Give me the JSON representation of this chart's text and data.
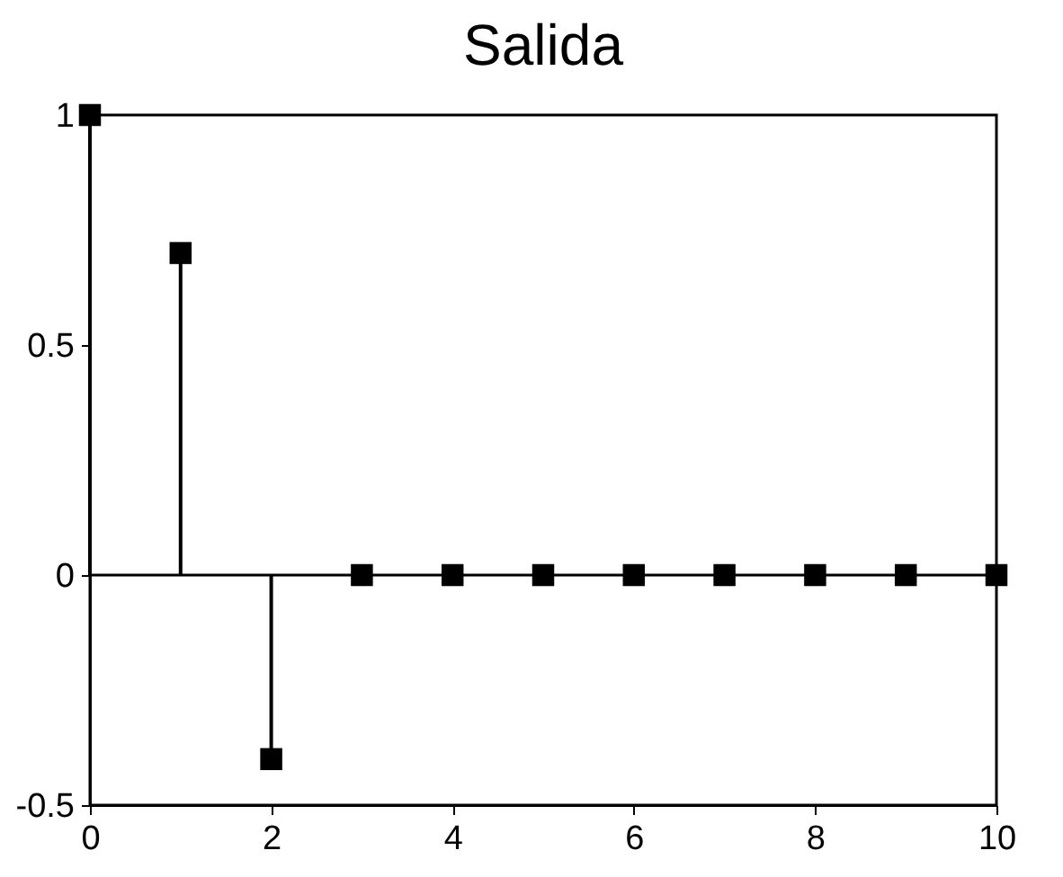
{
  "chart_data": {
    "type": "lollipop",
    "title": "Salida",
    "x": [
      0,
      1,
      2,
      3,
      4,
      5,
      6,
      7,
      8,
      9,
      10
    ],
    "values": [
      1,
      0.7,
      -0.4,
      0,
      0,
      0,
      0,
      0,
      0,
      0,
      0
    ],
    "color": "#000000",
    "marker": "square",
    "xlim": [
      0,
      10
    ],
    "xticks": [
      0,
      2,
      4,
      6,
      8,
      10
    ],
    "ylim": [
      -0.5,
      1
    ],
    "yticks": [
      -0.5,
      0,
      0.5,
      1
    ],
    "ref_lines": [
      {
        "axis": "y",
        "value": 0,
        "color": "#000000"
      }
    ],
    "grid": false
  }
}
